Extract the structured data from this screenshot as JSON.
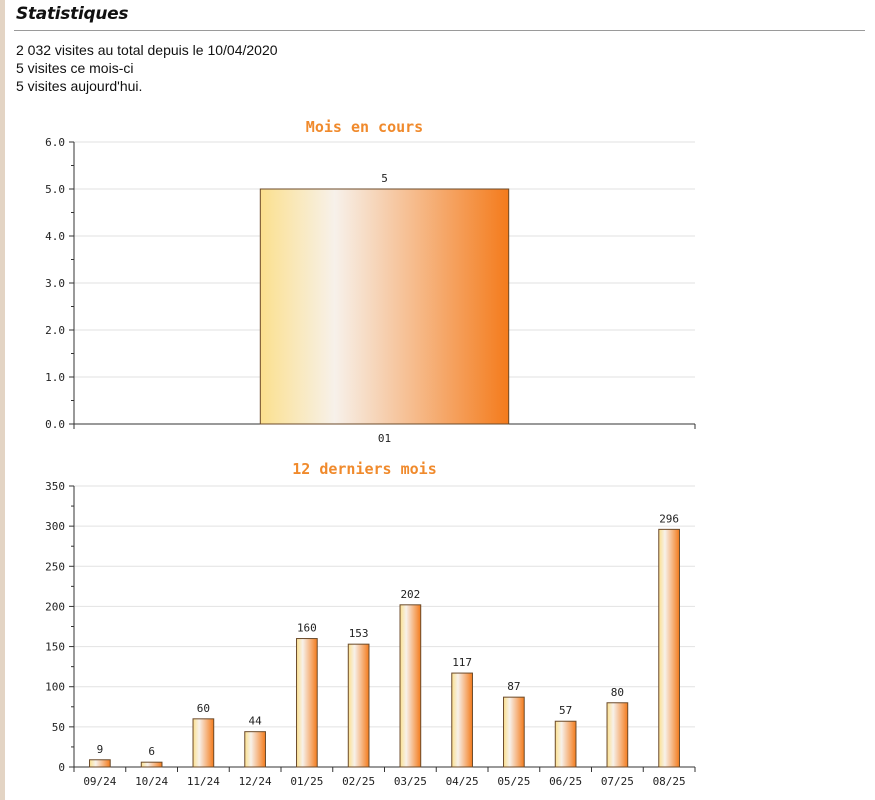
{
  "section": {
    "title": "Statistiques"
  },
  "stats": {
    "total_line": "2 032 visites au total depuis le 10/04/2020",
    "month_line": "5 visites ce mois-ci",
    "today_line": "5 visites aujourd'hui."
  },
  "colors": {
    "bar_light": "#fbe08e",
    "bar_mid": "#f7f1ea",
    "bar_dark": "#f47b1c",
    "title_color": "#f08a2c",
    "grid": "#e2e2e2",
    "axis": "#333333"
  },
  "chart_data": [
    {
      "type": "bar",
      "title": "Mois en cours",
      "categories": [
        "01"
      ],
      "values": [
        5
      ],
      "data_labels": [
        "5"
      ],
      "ylim": [
        0,
        6
      ],
      "yticks": [
        0,
        1,
        2,
        3,
        4,
        5,
        6
      ],
      "ytick_labels": [
        "0.0",
        "1.0",
        "2.0",
        "3.0",
        "4.0",
        "5.0",
        "6.0"
      ],
      "grid": true
    },
    {
      "type": "bar",
      "title": "12 derniers mois",
      "categories": [
        "09/24",
        "10/24",
        "11/24",
        "12/24",
        "01/25",
        "02/25",
        "03/25",
        "04/25",
        "05/25",
        "06/25",
        "07/25",
        "08/25"
      ],
      "values": [
        9,
        6,
        60,
        44,
        160,
        153,
        202,
        117,
        87,
        57,
        80,
        296
      ],
      "data_labels": [
        "9",
        "6",
        "60",
        "44",
        "160",
        "153",
        "202",
        "117",
        "87",
        "57",
        "80",
        "296"
      ],
      "ylim": [
        0,
        350
      ],
      "yticks": [
        0,
        50,
        100,
        150,
        200,
        250,
        300,
        350
      ],
      "ytick_labels": [
        "0",
        "50",
        "100",
        "150",
        "200",
        "250",
        "300",
        "350"
      ],
      "grid": true
    }
  ]
}
